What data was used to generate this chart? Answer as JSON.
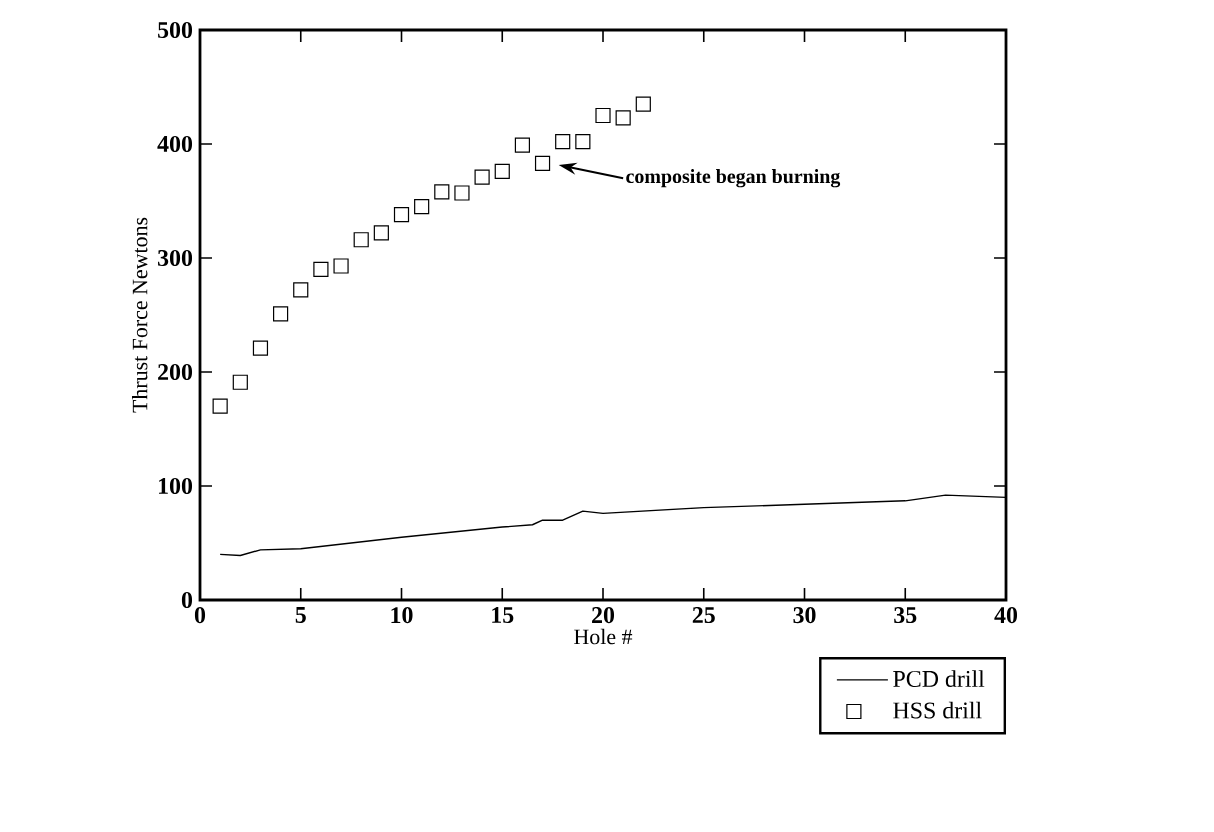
{
  "chart_data": {
    "type": "line",
    "xlabel": "Hole #",
    "ylabel": "Thrust Force Newtons",
    "xlim": [
      0,
      40
    ],
    "xticks": [
      0,
      5,
      10,
      15,
      20,
      25,
      30,
      35,
      40
    ],
    "ylim": [
      0,
      500
    ],
    "yticks": [
      0,
      100,
      200,
      300,
      400,
      500
    ],
    "grid": false,
    "legend": "bottom right",
    "series": [
      {
        "name": "PCD drill",
        "color": "#000000",
        "marker": "none",
        "line_style": "solid",
        "x": [
          1,
          2,
          3,
          5,
          10,
          15,
          16.5,
          17,
          18,
          19,
          20,
          25,
          30,
          35,
          37,
          40
        ],
        "values": [
          40,
          39,
          44,
          45,
          55,
          64,
          66,
          70,
          70,
          78,
          76,
          81,
          84,
          87,
          92,
          90
        ]
      },
      {
        "name": "HSS drill",
        "type": "scatter",
        "color": "#000000",
        "marker": "square",
        "x": [
          1,
          2,
          3,
          4,
          5,
          6,
          7,
          8,
          9,
          10,
          11,
          12,
          13,
          14,
          15,
          16,
          17,
          18,
          19,
          20,
          21,
          22
        ],
        "values": [
          170,
          191,
          221,
          251,
          272,
          290,
          293,
          316,
          322,
          338,
          345,
          358,
          357,
          371,
          376,
          399,
          383,
          402,
          402,
          425,
          423,
          435
        ]
      }
    ],
    "annotations": [
      "composite began burning"
    ]
  }
}
